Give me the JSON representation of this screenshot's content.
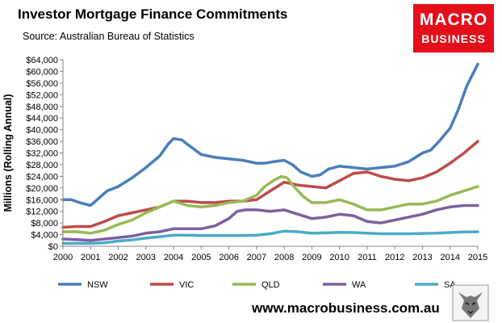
{
  "header": {
    "title": "Investor Mortgage Finance Commitments",
    "subtitle": "Source: Australian Bureau of Statistics"
  },
  "logo": {
    "line1": "MACRO",
    "line2": "BUSINESS",
    "color": "#e3101b"
  },
  "footer": {
    "website": "www.macrobusiness.com.au"
  },
  "chart_data": {
    "type": "line",
    "ylabel": "Millions (Rolling Annual)",
    "xlim": [
      2000,
      2015
    ],
    "ylim": [
      0,
      64000
    ],
    "y_ticks": [
      "$0",
      "$4,000",
      "$8,000",
      "$12,000",
      "$16,000",
      "$20,000",
      "$24,000",
      "$28,000",
      "$32,000",
      "$36,000",
      "$40,000",
      "$44,000",
      "$48,000",
      "$52,000",
      "$56,000",
      "$60,000",
      "$64,000"
    ],
    "x_ticks": [
      "2000",
      "2001",
      "2002",
      "2003",
      "2004",
      "2005",
      "2006",
      "2007",
      "2008",
      "2009",
      "2010",
      "2011",
      "2012",
      "2013",
      "2014",
      "2015"
    ],
    "grid": false,
    "legend_position": "bottom",
    "series": [
      {
        "name": "NSW",
        "color": "#4a7ebb",
        "x": [
          2000,
          2000.3,
          2000.6,
          2001,
          2001.3,
          2001.6,
          2002,
          2002.5,
          2003,
          2003.5,
          2003.8,
          2004,
          2004.3,
          2004.5,
          2005,
          2005.5,
          2006,
          2006.5,
          2007,
          2007.3,
          2007.6,
          2008,
          2008.3,
          2008.6,
          2009,
          2009.3,
          2009.6,
          2010,
          2010.5,
          2011,
          2011.5,
          2012,
          2012.5,
          2013,
          2013.3,
          2013.6,
          2014,
          2014.3,
          2014.6,
          2015
        ],
        "y": [
          16000,
          16000,
          15000,
          14000,
          16500,
          19000,
          20500,
          23500,
          27000,
          31000,
          35000,
          37000,
          36500,
          35000,
          31500,
          30500,
          30000,
          29500,
          28500,
          28500,
          29000,
          29500,
          28000,
          25500,
          24000,
          24500,
          26500,
          27500,
          27000,
          26500,
          27000,
          27500,
          29000,
          32000,
          33000,
          36000,
          40500,
          47000,
          55000,
          62500
        ]
      },
      {
        "name": "VIC",
        "color": "#be4b48",
        "x": [
          2000,
          2000.5,
          2001,
          2001.5,
          2002,
          2002.5,
          2003,
          2003.5,
          2004,
          2004.5,
          2005,
          2005.5,
          2006,
          2006.5,
          2007,
          2007.5,
          2008,
          2008.5,
          2009,
          2009.5,
          2010,
          2010.5,
          2011,
          2011.5,
          2012,
          2012.5,
          2013,
          2013.5,
          2014,
          2014.5,
          2015
        ],
        "y": [
          6500,
          6800,
          6800,
          8500,
          10500,
          11500,
          12500,
          13500,
          15500,
          15500,
          15000,
          15000,
          15500,
          15500,
          16000,
          19000,
          22000,
          21000,
          20500,
          20000,
          22500,
          25000,
          25500,
          24000,
          23000,
          22500,
          23500,
          25500,
          28500,
          32000,
          36000
        ]
      },
      {
        "name": "QLD",
        "color": "#98b954",
        "x": [
          2000,
          2000.5,
          2001,
          2001.5,
          2002,
          2002.5,
          2003,
          2003.5,
          2004,
          2004.5,
          2005,
          2005.5,
          2006,
          2006.5,
          2007,
          2007.3,
          2007.6,
          2007.9,
          2008.1,
          2008.4,
          2008.7,
          2009,
          2009.5,
          2010,
          2010.5,
          2011,
          2011.5,
          2012,
          2012.5,
          2013,
          2013.5,
          2014,
          2014.5,
          2015
        ],
        "y": [
          5000,
          5000,
          4500,
          5500,
          7500,
          9000,
          11500,
          13500,
          15500,
          14000,
          13500,
          14000,
          15000,
          15500,
          17500,
          20500,
          22500,
          24000,
          23500,
          20000,
          17000,
          15000,
          15000,
          16000,
          14500,
          12500,
          12500,
          13500,
          14500,
          14500,
          15500,
          17500,
          19000,
          20500
        ]
      },
      {
        "name": "WA",
        "color": "#7d60a0",
        "x": [
          2000,
          2000.5,
          2001,
          2001.5,
          2002,
          2002.5,
          2003,
          2003.5,
          2004,
          2004.5,
          2005,
          2005.5,
          2006,
          2006.3,
          2006.6,
          2007,
          2007.5,
          2008,
          2008.5,
          2009,
          2009.5,
          2010,
          2010.5,
          2011,
          2011.5,
          2012,
          2012.5,
          2013,
          2013.5,
          2014,
          2014.5,
          2015
        ],
        "y": [
          2500,
          2300,
          2000,
          2500,
          3000,
          3500,
          4500,
          5000,
          6000,
          6000,
          6000,
          7000,
          9500,
          12000,
          12500,
          12500,
          12000,
          12500,
          11000,
          9500,
          10000,
          11000,
          10500,
          8500,
          8000,
          9000,
          10000,
          11000,
          12500,
          13500,
          14000,
          14000
        ]
      },
      {
        "name": "SA",
        "color": "#4bacc6",
        "x": [
          2000,
          2000.5,
          2001,
          2001.5,
          2002,
          2002.5,
          2003,
          2003.5,
          2004,
          2004.5,
          2005,
          2005.5,
          2006,
          2006.5,
          2007,
          2007.5,
          2008,
          2008.5,
          2009,
          2009.5,
          2010,
          2010.5,
          2011,
          2011.5,
          2012,
          2012.5,
          2013,
          2013.5,
          2014,
          2014.5,
          2015
        ],
        "y": [
          1000,
          1000,
          1000,
          1200,
          1800,
          2200,
          2800,
          3300,
          3800,
          3800,
          3700,
          3700,
          3700,
          3700,
          3800,
          4300,
          5200,
          5000,
          4500,
          4600,
          4800,
          4700,
          4500,
          4300,
          4300,
          4300,
          4400,
          4500,
          4700,
          4900,
          5000
        ]
      }
    ]
  }
}
